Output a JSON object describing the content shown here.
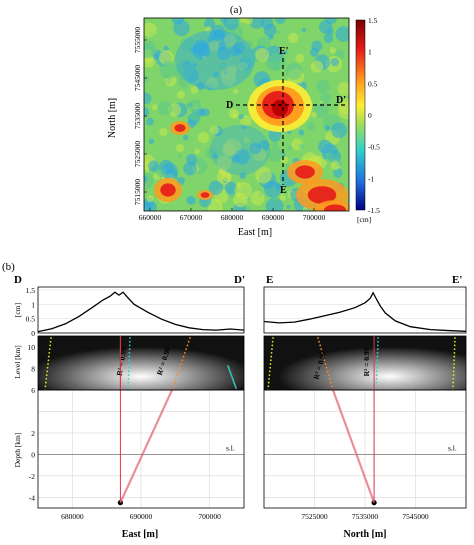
{
  "panels": {
    "a": "(a)",
    "b": "(b)"
  },
  "map": {
    "xlabel": "East [m]",
    "ylabel": "North [m]",
    "xticks": [
      "660000",
      "670000",
      "680000",
      "690000",
      "700000"
    ],
    "yticks": [
      "7555000",
      "7545000",
      "7535000",
      "7525000",
      "7515000"
    ],
    "profile_labels": {
      "D": "D",
      "D_prime": "D'",
      "E": "E",
      "E_prime": "E'"
    },
    "colorbar_ticks": [
      "1.5",
      "1",
      "0.5",
      "0",
      "-0.5",
      "-1",
      "-1.5"
    ],
    "colorbar_unit": "[cm]",
    "colors": {
      "high": "#b80000",
      "mid": "#ffee33",
      "base": "#7fd46a",
      "low": "#2ea8e0"
    }
  },
  "chart_data": [
    {
      "type": "line",
      "panel": "D-D'",
      "start_label": "D",
      "end_label": "D'",
      "ylabel": "[cm]",
      "yticks": [
        "1.5",
        "1",
        "0.5",
        "0"
      ],
      "xlim": [
        675000,
        705000
      ],
      "ylim": [
        0,
        1.6
      ],
      "x": [
        675000,
        677000,
        679000,
        681000,
        683000,
        684500,
        685500,
        686200,
        686800,
        687400,
        688000,
        689000,
        691000,
        693000,
        695000,
        697000,
        699000,
        701000,
        703000,
        705000
      ],
      "y": [
        0.05,
        0.15,
        0.32,
        0.58,
        0.9,
        1.15,
        1.28,
        1.42,
        1.32,
        1.42,
        1.25,
        1.0,
        0.72,
        0.48,
        0.3,
        0.18,
        0.12,
        0.1,
        0.14,
        0.1
      ]
    },
    {
      "type": "line",
      "panel": "E-E'",
      "start_label": "E",
      "end_label": "E'",
      "xlim": [
        7515000,
        7555000
      ],
      "ylim": [
        0,
        1.6
      ],
      "x": [
        7515000,
        7518000,
        7521000,
        7524000,
        7527000,
        7530000,
        7533000,
        7535000,
        7536000,
        7536600,
        7537200,
        7538000,
        7539000,
        7541000,
        7544000,
        7548000,
        7552000,
        7555000
      ],
      "y": [
        0.4,
        0.35,
        0.38,
        0.48,
        0.6,
        0.72,
        0.88,
        1.05,
        1.2,
        1.4,
        1.2,
        0.95,
        0.7,
        0.42,
        0.22,
        0.12,
        0.08,
        0.06
      ]
    },
    {
      "type": "scatter",
      "panel": "D-D' section",
      "level_label": "Level [km]",
      "level_ticks": [
        "10",
        "8",
        "6"
      ],
      "depth_label": "Depth [km]",
      "depth_ticks": [
        "2",
        "0",
        "-2",
        "-4"
      ],
      "xlabel": "East [m]",
      "xticks": [
        "680000",
        "690000",
        "700000"
      ],
      "sea_level": "s.l.",
      "level_range": [
        6,
        11
      ],
      "depth_range": [
        -5,
        6
      ],
      "xlim": [
        675000,
        705000
      ],
      "annotations": [
        "R² = 0.99",
        "R² = 0.96"
      ],
      "source_x": 687000,
      "source_depth": -4.5
    },
    {
      "type": "scatter",
      "panel": "E-E' section",
      "xlabel": "North [m]",
      "xticks": [
        "7525000",
        "7535000",
        "7545000"
      ],
      "sea_level": "s.l.",
      "xlim": [
        7515000,
        7555000
      ],
      "annotations": [
        "R² = 0.99",
        "R² = 0.99"
      ],
      "source_x": 7536800,
      "source_depth": -4.5
    }
  ]
}
